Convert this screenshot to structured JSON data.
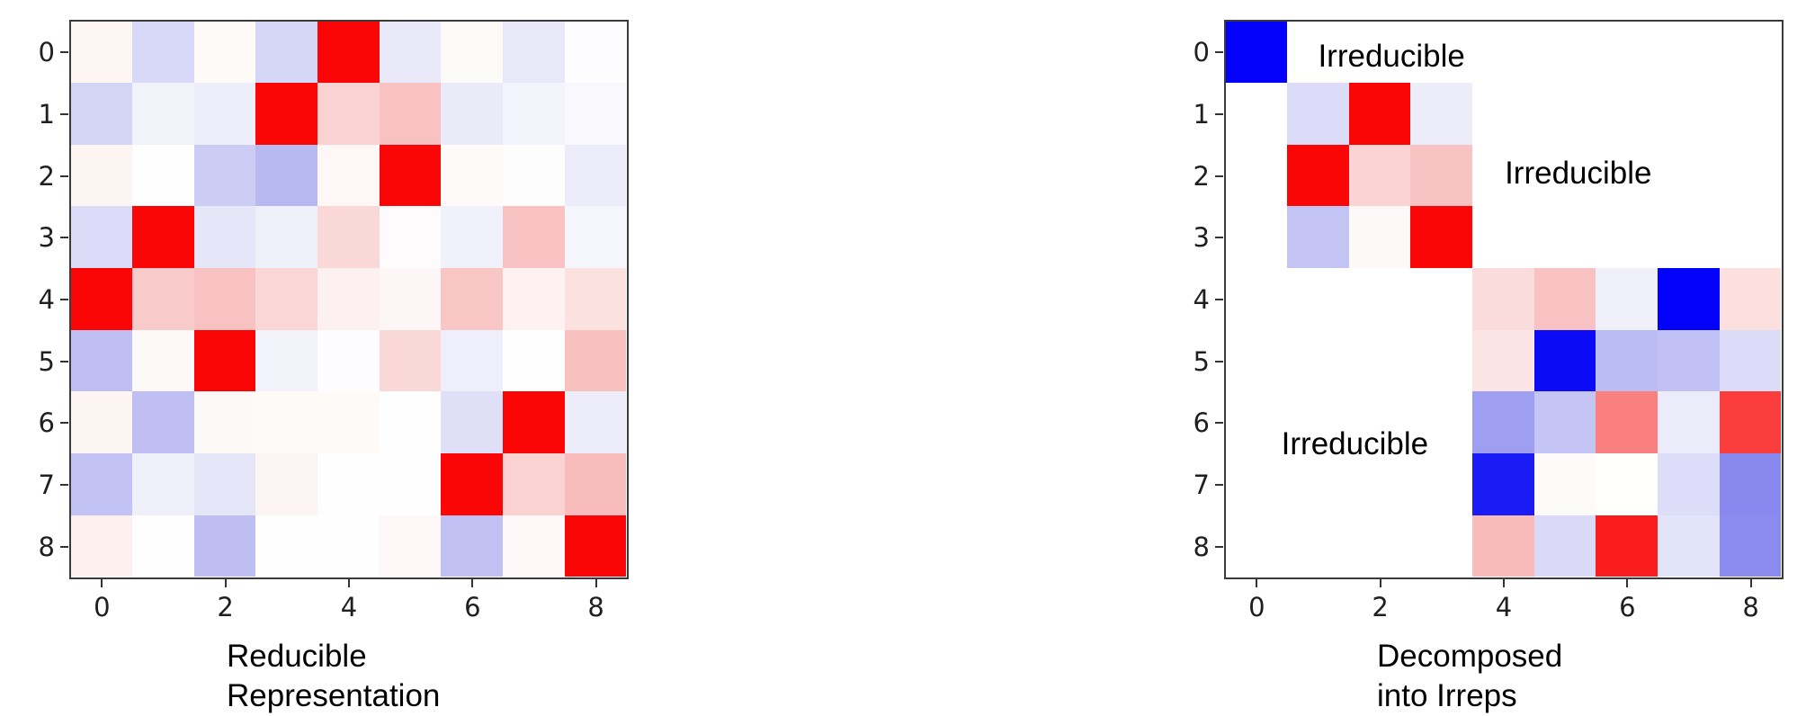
{
  "figure": {
    "background": "#ffffff",
    "axis_color": "#3a3a3a",
    "tick_label_color": "#1f1f1f",
    "text_color": "#000000"
  },
  "left_plot": {
    "caption_lines": [
      "Reducible",
      "Representation"
    ],
    "x_tick_labels": [
      "0",
      "2",
      "4",
      "6",
      "8"
    ],
    "y_tick_labels": [
      "0",
      "1",
      "2",
      "3",
      "4",
      "5",
      "6",
      "7",
      "8"
    ]
  },
  "right_plot": {
    "caption_lines": [
      "Decomposed",
      "into Irreps"
    ],
    "x_tick_labels": [
      "0",
      "2",
      "4",
      "6",
      "8"
    ],
    "y_tick_labels": [
      "0",
      "1",
      "2",
      "3",
      "4",
      "5",
      "6",
      "7",
      "8"
    ],
    "annotations": [
      {
        "text": "Irreducible",
        "fx": 0.298,
        "fy": 0.063
      },
      {
        "text": "Irreducible",
        "fx": 0.634,
        "fy": 0.274
      },
      {
        "text": "Irreducible",
        "fx": 0.232,
        "fy": 0.76
      }
    ]
  },
  "chart_data": [
    {
      "type": "heatmap",
      "title": "Reducible Representation",
      "colormap": "bwr",
      "x_ticks": [
        0,
        2,
        4,
        6,
        8
      ],
      "y_ticks": [
        0,
        1,
        2,
        3,
        4,
        5,
        6,
        7,
        8
      ],
      "rows": 9,
      "cols": 9,
      "value_range": [
        -1,
        1
      ],
      "values": [
        [
          0.03,
          -0.15,
          0.02,
          -0.16,
          1.0,
          -0.09,
          0.01,
          -0.09,
          0.0
        ],
        [
          -0.17,
          -0.05,
          -0.06,
          1.0,
          0.18,
          0.24,
          -0.08,
          -0.04,
          -0.03
        ],
        [
          0.04,
          0.0,
          -0.2,
          -0.27,
          0.03,
          1.0,
          0.02,
          0.0,
          -0.07
        ],
        [
          -0.14,
          1.0,
          -0.1,
          -0.06,
          0.15,
          0.01,
          -0.06,
          0.24,
          -0.04
        ],
        [
          1.0,
          0.21,
          0.24,
          0.16,
          0.05,
          0.04,
          0.22,
          0.05,
          0.11
        ],
        [
          -0.25,
          0.02,
          1.0,
          -0.05,
          0.0,
          0.15,
          -0.06,
          0.0,
          0.25
        ],
        [
          0.03,
          -0.25,
          0.02,
          0.01,
          0.01,
          0.0,
          -0.13,
          1.0,
          -0.07
        ],
        [
          -0.24,
          -0.06,
          -0.1,
          0.03,
          0.0,
          0.0,
          1.0,
          0.18,
          0.26
        ],
        [
          0.05,
          0.0,
          -0.26,
          0.0,
          0.0,
          0.03,
          -0.25,
          0.03,
          1.0
        ]
      ],
      "cell_colors": [
        [
          "#fdf6f3",
          "#d8d8f8",
          "#fdfaf7",
          "#d6d6f8",
          "#fb0606",
          "#e9e9fa",
          "#fdfbf8",
          "#e8e8f9",
          "#fdfdff"
        ],
        [
          "#d4d4f7",
          "#f2f2fb",
          "#eeeefa",
          "#fb0606",
          "#fad2d2",
          "#f9c2c2",
          "#eaeaf9",
          "#f4f4fc",
          "#f8f8fd"
        ],
        [
          "#fdf5f2",
          "#fefeff",
          "#ccccf5",
          "#b9b9f2",
          "#fdf8f5",
          "#fb0606",
          "#fdfaf7",
          "#fdfdfe",
          "#ececfa"
        ],
        [
          "#dcdcf8",
          "#fb0606",
          "#e6e6f9",
          "#f0f0fb",
          "#fbd8d8",
          "#fdfbfb",
          "#f1f1fb",
          "#f9c3c3",
          "#f5f5fc"
        ],
        [
          "#fb0606",
          "#f9caca",
          "#f8c2c2",
          "#fbd6d6",
          "#fdf0f0",
          "#fdf6f6",
          "#f9c6c6",
          "#fdf1f1",
          "#fce1e1"
        ],
        [
          "#bfbff4",
          "#fdf8f8",
          "#fb0606",
          "#f2f2fb",
          "#fdfdff",
          "#fbd8d8",
          "#efeffb",
          "#fefeff",
          "#f9c0c0"
        ],
        [
          "#fdf5f2",
          "#bfbff4",
          "#fdf9f7",
          "#fdfaf8",
          "#fdfaf8",
          "#fefeff",
          "#dfdff8",
          "#fb0606",
          "#ededfa"
        ],
        [
          "#c2c2f4",
          "#f0f0fb",
          "#e5e5f8",
          "#fcf4f2",
          "#fefeff",
          "#fefeff",
          "#fb0606",
          "#fbd2d2",
          "#f9bcbc"
        ],
        [
          "#fdf1ef",
          "#fefeff",
          "#bebef3",
          "#fefeff",
          "#fefeff",
          "#fdf7f7",
          "#c0c0f3",
          "#fdf7f7",
          "#fb0606"
        ]
      ]
    },
    {
      "type": "heatmap",
      "title": "Decomposed into Irreps",
      "colormap": "bwr",
      "x_ticks": [
        0,
        2,
        4,
        6,
        8
      ],
      "y_ticks": [
        0,
        1,
        2,
        3,
        4,
        5,
        6,
        7,
        8
      ],
      "rows": 9,
      "cols": 9,
      "value_range": [
        -1,
        1
      ],
      "block_structure": "block-diagonal: blocks [0], [1-3], [4-8]",
      "annotations": [
        "Irreducible",
        "Irreducible",
        "Irreducible"
      ],
      "values": [
        [
          -1.0,
          0.0,
          0.0,
          0.0,
          0.0,
          0.0,
          0.0,
          0.0,
          0.0
        ],
        [
          0.0,
          -0.14,
          1.0,
          -0.07,
          0.0,
          0.0,
          0.0,
          0.0,
          0.0
        ],
        [
          0.0,
          1.0,
          0.17,
          0.23,
          0.0,
          0.0,
          0.0,
          0.0,
          0.0
        ],
        [
          0.0,
          -0.24,
          0.03,
          1.0,
          0.0,
          0.0,
          0.0,
          0.0,
          0.0
        ],
        [
          0.0,
          0.0,
          0.0,
          0.0,
          0.14,
          0.24,
          -0.06,
          -1.0,
          0.12
        ],
        [
          0.0,
          0.0,
          0.0,
          0.0,
          0.11,
          -0.96,
          -0.26,
          -0.25,
          -0.14
        ],
        [
          0.0,
          0.0,
          0.0,
          0.0,
          -0.38,
          -0.23,
          0.5,
          -0.08,
          0.76
        ],
        [
          0.0,
          0.0,
          0.0,
          0.0,
          -0.89,
          0.01,
          0.0,
          -0.13,
          -0.47
        ],
        [
          0.0,
          0.0,
          0.0,
          0.0,
          0.27,
          -0.14,
          0.88,
          -0.11,
          -0.45
        ]
      ],
      "cell_colors": [
        [
          "#0202fb",
          "#ffffff",
          "#ffffff",
          "#ffffff",
          "#ffffff",
          "#ffffff",
          "#ffffff",
          "#ffffff",
          "#ffffff"
        ],
        [
          "#ffffff",
          "#dcdcf8",
          "#fb0606",
          "#ededfa",
          "#ffffff",
          "#ffffff",
          "#ffffff",
          "#ffffff",
          "#ffffff"
        ],
        [
          "#ffffff",
          "#fb0606",
          "#fad4d4",
          "#f8c3c3",
          "#ffffff",
          "#ffffff",
          "#ffffff",
          "#ffffff",
          "#ffffff"
        ],
        [
          "#ffffff",
          "#c3c3f4",
          "#fdf8f8",
          "#fb0606",
          "#ffffff",
          "#ffffff",
          "#ffffff",
          "#ffffff",
          "#ffffff"
        ],
        [
          "#ffffff",
          "#ffffff",
          "#ffffff",
          "#ffffff",
          "#fbdcdc",
          "#f8c2c2",
          "#f0f0fb",
          "#0202fb",
          "#fcdfdf"
        ],
        [
          "#ffffff",
          "#ffffff",
          "#ffffff",
          "#ffffff",
          "#fce4e4",
          "#0b0bf6",
          "#bcbcf4",
          "#c0c0f5",
          "#dcdcf8"
        ],
        [
          "#ffffff",
          "#ffffff",
          "#ffffff",
          "#ffffff",
          "#9f9ff1",
          "#c4c4f5",
          "#fa8080",
          "#ebebfa",
          "#fb3c3c"
        ],
        [
          "#ffffff",
          "#ffffff",
          "#ffffff",
          "#ffffff",
          "#1b1bf5",
          "#fdfbfa",
          "#fffffe",
          "#ddddf9",
          "#8888ee"
        ],
        [
          "#ffffff",
          "#ffffff",
          "#ffffff",
          "#ffffff",
          "#f9baba",
          "#dadaf8",
          "#fa1d1d",
          "#e2e4f9",
          "#8b8bef"
        ]
      ]
    }
  ]
}
